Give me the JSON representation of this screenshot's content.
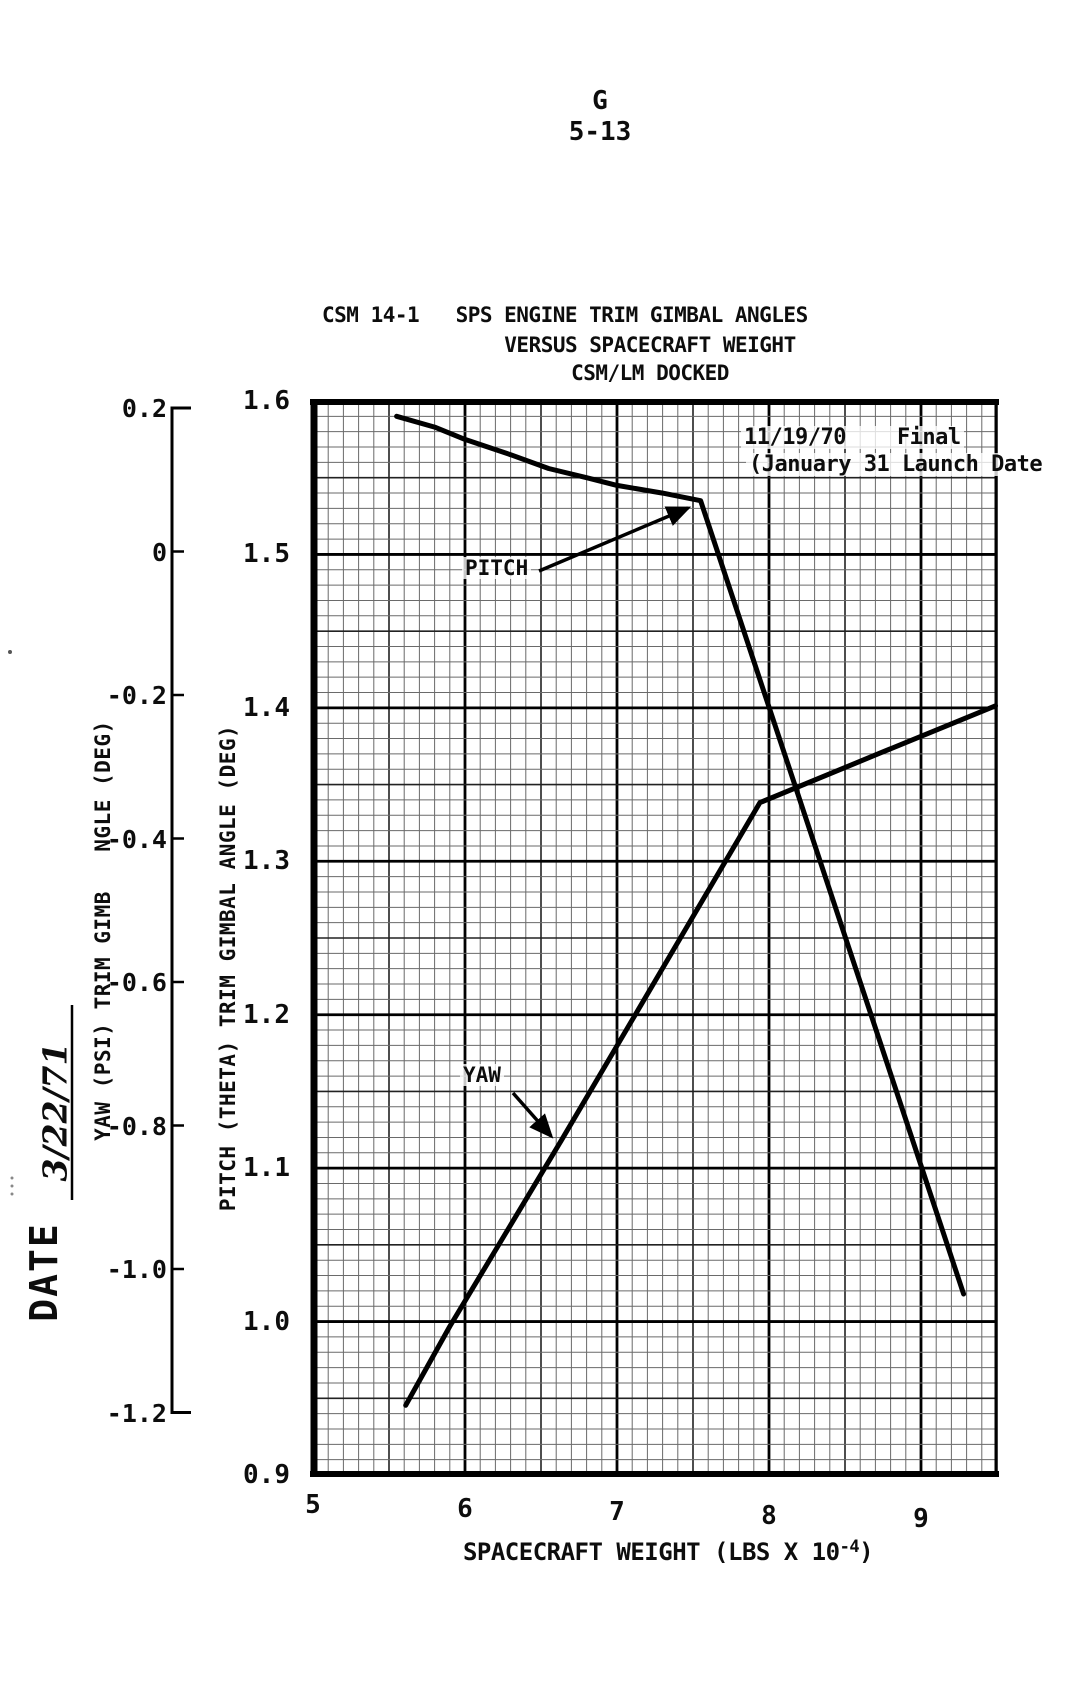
{
  "page": {
    "header_letter": "G",
    "page_number": "5-13"
  },
  "title": {
    "line1": "CSM 14-1   SPS ENGINE TRIM GIMBAL ANGLES",
    "line2": "VERSUS SPACECRAFT WEIGHT",
    "line3": "CSM/LM DOCKED"
  },
  "annotation": {
    "line1": "11/19/70    Final",
    "line2": "(January 31 Launch Date"
  },
  "date_block": {
    "label": "DATE",
    "value": "3/22/71"
  },
  "chart_data": {
    "type": "line",
    "title": "CSM 14-1 SPS ENGINE TRIM GIMBAL ANGLES VERSUS SPACECRAFT WEIGHT, CSM/LM DOCKED",
    "grid": true,
    "x_axis": {
      "label_prefix": "SPACECRAFT WEIGHT (LBS X 10",
      "label_exponent": "-4",
      "label_suffix": ")",
      "range": [
        5,
        9.5
      ],
      "ticks": [
        "5",
        "6",
        "7",
        "8",
        "9"
      ]
    },
    "pitch_axis": {
      "label": "PITCH (THETA) TRIM GIMBAL ANGLE (DEG)",
      "range": [
        0.9,
        1.6
      ],
      "ticks": [
        "1.6",
        "1.5",
        "1.4",
        "1.3",
        "1.2",
        "1.1",
        "1.0",
        "0.9"
      ]
    },
    "yaw_axis": {
      "label_upper": "NGLE (DEG)",
      "label_lower": "YAW (PSI) TRIM GIMB",
      "range": [
        -1.2,
        0.2
      ],
      "ticks": [
        "0.2",
        "0",
        "-0.2",
        "-0.4",
        "-0.6",
        "-0.8",
        "-1.0",
        "-1.2"
      ]
    },
    "series": [
      {
        "name": "PITCH",
        "axis": "pitch",
        "points": [
          [
            5.55,
            1.59
          ],
          [
            5.8,
            1.583
          ],
          [
            6.0,
            1.575
          ],
          [
            6.3,
            1.565
          ],
          [
            6.55,
            1.556
          ],
          [
            6.8,
            1.55
          ],
          [
            7.0,
            1.545
          ],
          [
            7.3,
            1.54
          ],
          [
            7.55,
            1.535
          ],
          [
            9.28,
            1.018
          ]
        ]
      },
      {
        "name": "YAW",
        "axis": "yaw",
        "points": [
          [
            5.61,
            -1.19
          ],
          [
            5.9,
            -1.08
          ],
          [
            6.63,
            -0.822
          ],
          [
            7.28,
            -0.588
          ],
          [
            7.94,
            -0.35
          ],
          [
            8.73,
            -0.281
          ],
          [
            9.49,
            -0.215
          ]
        ]
      }
    ]
  }
}
